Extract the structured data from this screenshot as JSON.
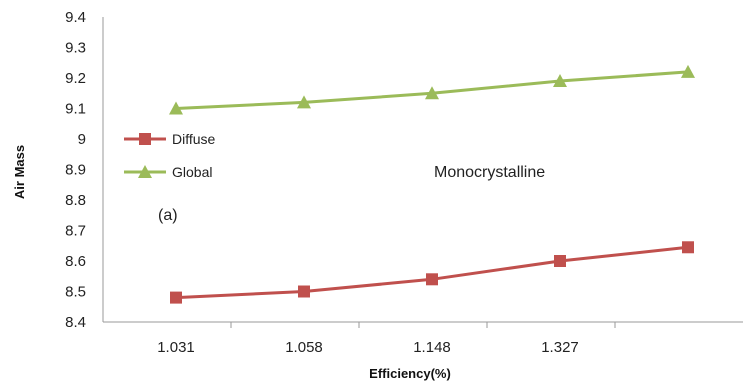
{
  "chart_data": {
    "type": "line",
    "categories": [
      "1.031",
      "1.058",
      "1.148",
      "1.327",
      ""
    ],
    "series": [
      {
        "name": "Diffuse",
        "values": [
          8.48,
          8.5,
          8.54,
          8.6,
          8.645
        ],
        "color": "#c0504d",
        "marker": "square"
      },
      {
        "name": "Global",
        "values": [
          9.1,
          9.12,
          9.15,
          9.19,
          9.22
        ],
        "color": "#9bbb59",
        "marker": "triangle"
      }
    ],
    "xlabel": "Efficiency(%)",
    "ylabel": "Air Mass",
    "ylim": [
      8.4,
      9.4
    ],
    "yticks": [
      "8.4",
      "8.5",
      "8.6",
      "8.7",
      "8.8",
      "8.9",
      "9",
      "9.1",
      "9.2",
      "9.3",
      "9.4"
    ],
    "grid": false,
    "legend_position": "left-middle",
    "annotations": [
      "Monocrystalline",
      "(a)"
    ]
  }
}
